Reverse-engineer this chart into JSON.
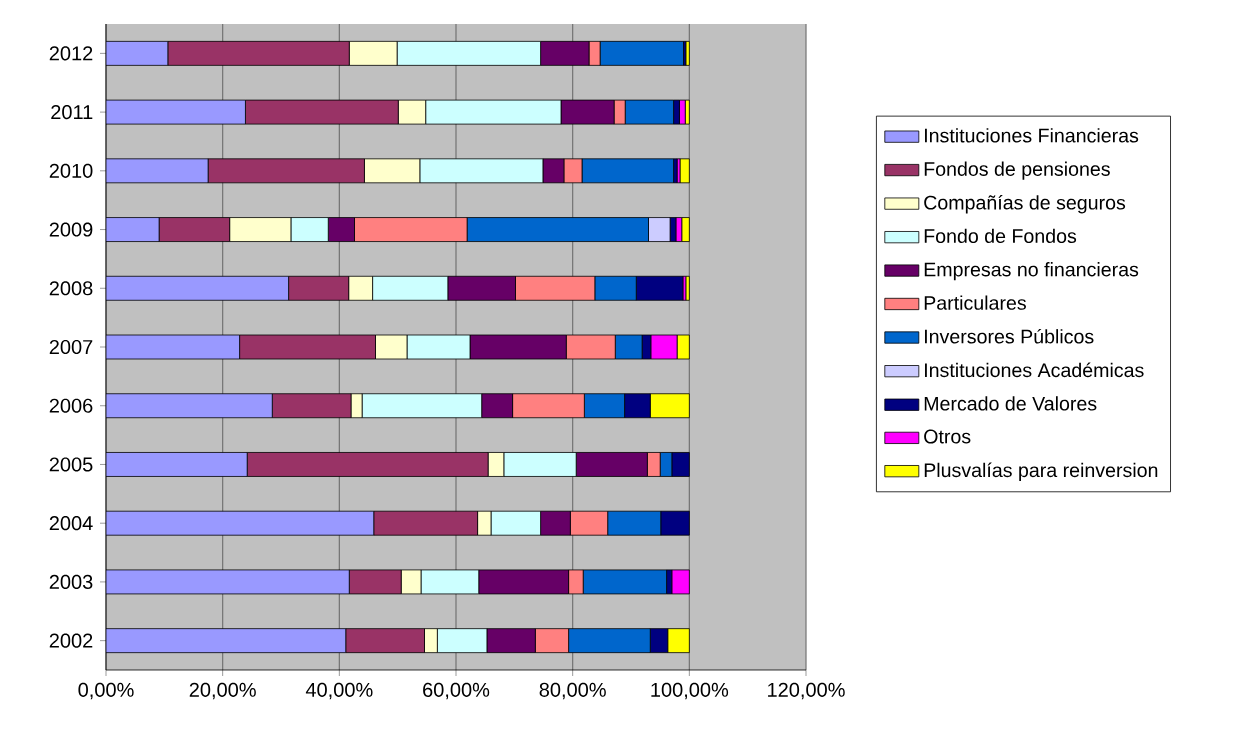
{
  "chart_data": {
    "type": "bar",
    "orientation": "horizontal",
    "stacked": true,
    "grid": "x",
    "legend": "right",
    "categories": [
      "2012",
      "2011",
      "2010",
      "2009",
      "2008",
      "2007",
      "2006",
      "2005",
      "2004",
      "2003",
      "2002"
    ],
    "xlim": [
      0,
      120
    ],
    "xticks": [
      {
        "value": 0,
        "label": "0,00%"
      },
      {
        "value": 20,
        "label": "20,00%"
      },
      {
        "value": 40,
        "label": "40,00%"
      },
      {
        "value": 60,
        "label": "60,00%"
      },
      {
        "value": 80,
        "label": "80,00%"
      },
      {
        "value": 100,
        "label": "100,00%"
      },
      {
        "value": 120,
        "label": "120,00%"
      }
    ],
    "series": [
      {
        "name": "Instituciones Financieras",
        "color": "#9999ff",
        "values": [
          10.6,
          23.9,
          17.5,
          9.1,
          31.3,
          22.9,
          28.5,
          24.2,
          45.9,
          41.7,
          41.1
        ]
      },
      {
        "name": "Fondos de pensiones",
        "color": "#993366",
        "values": [
          31.1,
          26.2,
          26.8,
          12.1,
          10.3,
          23.3,
          13.5,
          41.3,
          17.8,
          8.9,
          13.5
        ]
      },
      {
        "name": "Compañías de seguros",
        "color": "#ffffcc",
        "values": [
          8.2,
          4.7,
          9.5,
          10.5,
          4.1,
          5.4,
          1.9,
          2.7,
          2.3,
          3.4,
          2.2
        ]
      },
      {
        "name": "Fondo de Fondos",
        "color": "#ccffff",
        "values": [
          24.6,
          23.2,
          21.1,
          6.4,
          12.9,
          10.8,
          20.5,
          12.4,
          8.5,
          9.9,
          8.5
        ]
      },
      {
        "name": "Empresas no financieras",
        "color": "#660066",
        "values": [
          8.3,
          9.1,
          3.6,
          4.5,
          11.6,
          16.5,
          5.3,
          12.2,
          5.1,
          15.4,
          8.3
        ]
      },
      {
        "name": "Particulares",
        "color": "#ff8080",
        "values": [
          1.9,
          1.9,
          3.1,
          19.3,
          13.6,
          8.4,
          12.3,
          2.2,
          6.4,
          2.5,
          5.7
        ]
      },
      {
        "name": "Inversores Públicos",
        "color": "#0066cc",
        "values": [
          14.3,
          8.3,
          15.7,
          31.1,
          7.1,
          4.6,
          6.9,
          2.0,
          9.1,
          14.3,
          14.0
        ]
      },
      {
        "name": "Instituciones Académicas",
        "color": "#ccccff",
        "values": [
          0,
          0,
          0,
          3.7,
          0,
          0,
          0,
          0,
          0,
          0,
          0
        ]
      },
      {
        "name": "Mercado de Valores",
        "color": "#000080",
        "values": [
          0.4,
          1.0,
          0.6,
          1.0,
          8.0,
          1.5,
          4.4,
          3.0,
          4.9,
          0.9,
          3.0
        ]
      },
      {
        "name": "Otros",
        "color": "#ff00ff",
        "values": [
          0,
          1.0,
          0.5,
          1.0,
          0.5,
          4.5,
          0,
          0,
          0,
          3.0,
          0
        ]
      },
      {
        "name": "Plusvalías para reinversion",
        "color": "#ffff00",
        "values": [
          0.6,
          0.7,
          1.6,
          1.3,
          0.6,
          2.1,
          6.7,
          0,
          0,
          0,
          3.7
        ]
      }
    ]
  }
}
